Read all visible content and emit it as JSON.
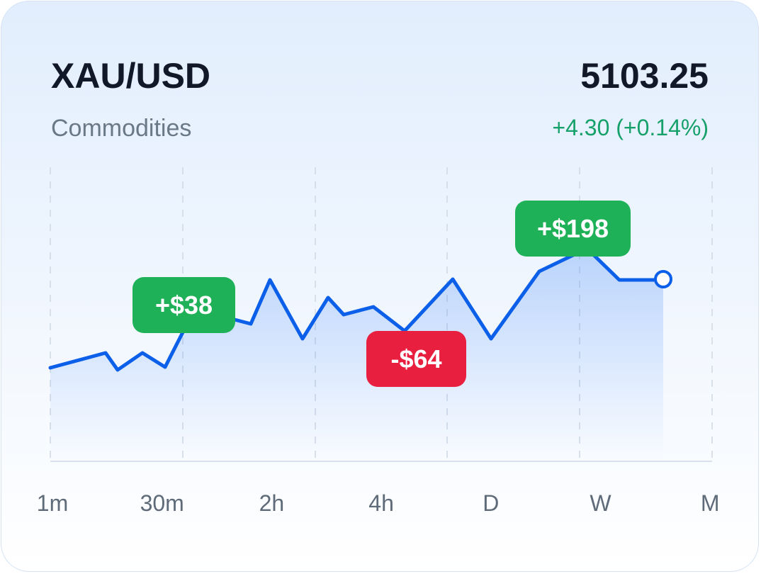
{
  "header": {
    "symbol": "XAU/USD",
    "price": "5103.25",
    "category": "Commodities",
    "change": "+4.30 (+0.14%)"
  },
  "badges": [
    "+$38",
    "-$64",
    "+$198"
  ],
  "timeframes": [
    "1m",
    "30m",
    "2h",
    "4h",
    "D",
    "W",
    "M"
  ]
}
